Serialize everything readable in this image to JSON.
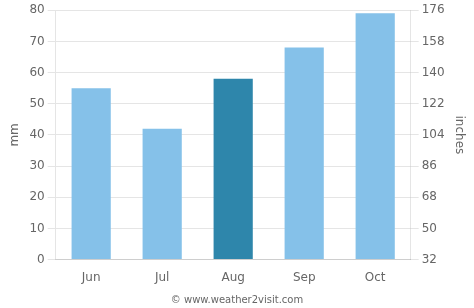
{
  "chart_data": {
    "type": "bar",
    "categories": [
      "Jun",
      "Jul",
      "Aug",
      "Sep",
      "Oct"
    ],
    "values": [
      55,
      42,
      58,
      68,
      79
    ],
    "colors": [
      "#85C1E9",
      "#85C1E9",
      "#2E86AB",
      "#85C1E9",
      "#85C1E9"
    ],
    "y_label": "mm",
    "y2_label": "inches",
    "ylim": [
      0,
      80
    ],
    "yticks": [
      0,
      10,
      20,
      30,
      40,
      50,
      60,
      70,
      80
    ],
    "y2lim": [
      32,
      176
    ],
    "y2ticks": [
      32,
      50,
      68,
      86,
      104,
      122,
      140,
      158,
      176
    ],
    "grid": true,
    "annotation": "© www.weather2visit.com"
  }
}
